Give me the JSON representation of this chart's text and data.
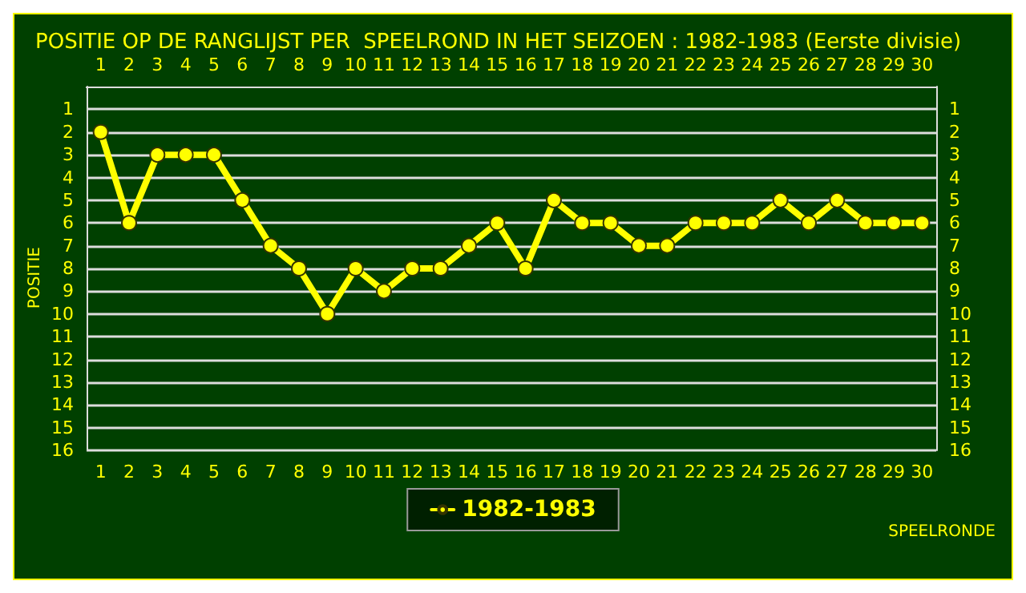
{
  "chart_data": {
    "type": "line",
    "title": "POSITIE OP DE RANGLIJST PER  SPEELROND IN HET SEIZOEN : 1982-1983 (Eerste divisie)",
    "xlabel": "SPEELRONDE",
    "ylabel": "POSITIE",
    "categories": [
      "1",
      "2",
      "3",
      "4",
      "5",
      "6",
      "7",
      "8",
      "9",
      "10",
      "11",
      "12",
      "13",
      "14",
      "15",
      "16",
      "17",
      "18",
      "19",
      "20",
      "21",
      "22",
      "23",
      "24",
      "25",
      "26",
      "27",
      "28",
      "29",
      "30"
    ],
    "series": [
      {
        "name": "1982-1983",
        "color": "#ffff00",
        "values": [
          2,
          6,
          3,
          3,
          3,
          5,
          7,
          8,
          10,
          8,
          9,
          8,
          8,
          7,
          6,
          8,
          5,
          6,
          6,
          7,
          7,
          6,
          6,
          6,
          5,
          6,
          5,
          6,
          6,
          6
        ]
      }
    ],
    "ylim": [
      16,
      0
    ],
    "yticks": [
      1,
      2,
      3,
      4,
      5,
      6,
      7,
      8,
      9,
      10,
      11,
      12,
      13,
      14,
      15,
      16
    ],
    "y2lim": [
      16,
      0
    ],
    "y2ticks": [
      1,
      2,
      3,
      4,
      5,
      6,
      7,
      8,
      9,
      10,
      11,
      12,
      13,
      14,
      15,
      16
    ],
    "grid": "y",
    "legend": "bottom",
    "marker": "circle",
    "line_style": "solid"
  }
}
